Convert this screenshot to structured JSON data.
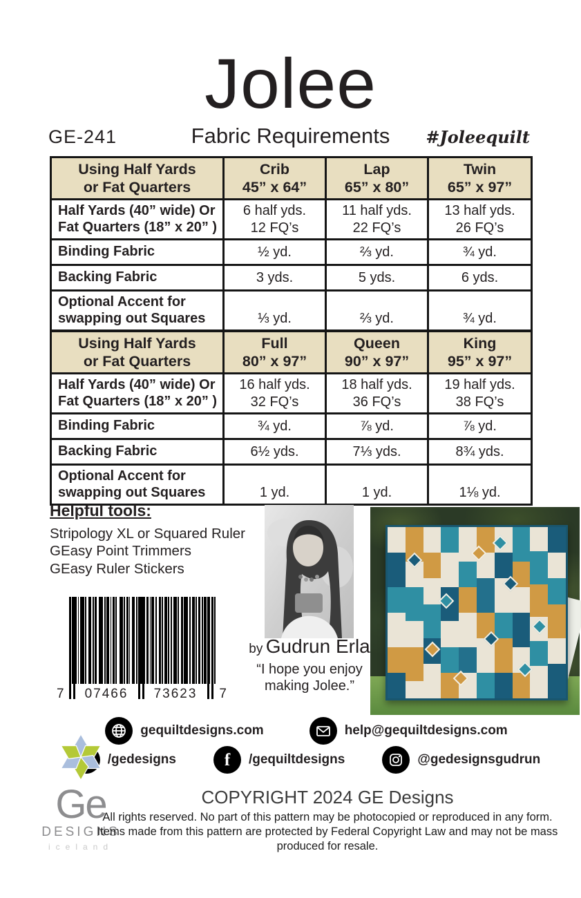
{
  "header": {
    "title": "Jolee",
    "pattern_number": "GE-241",
    "subtitle": "Fabric Requirements",
    "hashtag": "#Joleequilt"
  },
  "fabric_tables": [
    {
      "corner": [
        "Using Half Yards",
        "or Fat Quarters"
      ],
      "columns": [
        {
          "name": "Crib",
          "size": "45” x 64”"
        },
        {
          "name": "Lap",
          "size": "65”  x 80”"
        },
        {
          "name": "Twin",
          "size": "65”  x 97”"
        }
      ],
      "rows": [
        {
          "label": [
            "Half Yards (40”  wide)  Or",
            "Fat Quarters (18”  x 20” )"
          ],
          "values": [
            [
              "6 half yds.",
              "12 FQ’s"
            ],
            [
              "11 half yds.",
              "22 FQ’s"
            ],
            [
              "13 half yds.",
              "26 FQ’s"
            ]
          ]
        },
        {
          "label": [
            "Binding Fabric"
          ],
          "values": [
            [
              "½ yd."
            ],
            [
              "⅔ yd."
            ],
            [
              "¾ yd."
            ]
          ]
        },
        {
          "label": [
            "Backing Fabric"
          ],
          "values": [
            [
              "3 yds."
            ],
            [
              "5 yds."
            ],
            [
              "6 yds."
            ]
          ]
        },
        {
          "label": [
            "Optional Accent for",
            "swapping out Squares"
          ],
          "values": [
            [
              "⅓ yd."
            ],
            [
              "⅔ yd."
            ],
            [
              "¾ yd."
            ]
          ]
        }
      ]
    },
    {
      "corner": [
        "Using Half Yards",
        "or Fat Quarters"
      ],
      "columns": [
        {
          "name": "Full",
          "size": "80”  x 97”"
        },
        {
          "name": "Queen",
          "size": "90”  x 97”"
        },
        {
          "name": "King",
          "size": "95”  x 97”"
        }
      ],
      "rows": [
        {
          "label": [
            "Half Yards (40”  wide)  Or",
            "Fat Quarters (18”  x 20” )"
          ],
          "values": [
            [
              "16 half yds.",
              "32 FQ’s"
            ],
            [
              "18 half yds.",
              "36 FQ’s"
            ],
            [
              "19 half yds.",
              "38 FQ’s"
            ]
          ]
        },
        {
          "label": [
            "Binding Fabric"
          ],
          "values": [
            [
              "¾ yd."
            ],
            [
              "⅞ yd."
            ],
            [
              "⅞ yd."
            ]
          ]
        },
        {
          "label": [
            "Backing Fabric"
          ],
          "values": [
            [
              "6½ yds."
            ],
            [
              "7⅓ yds."
            ],
            [
              "8¾ yds."
            ]
          ]
        },
        {
          "label": [
            "Optional Accent for",
            "swapping out Squares"
          ],
          "values": [
            [
              "1 yd."
            ],
            [
              "1 yd."
            ],
            [
              "1⅛ yd."
            ]
          ]
        }
      ]
    }
  ],
  "helpful_tools": {
    "title": "Helpful tools:",
    "items": [
      "Stripology XL or Squared Ruler",
      "GEasy Point Trimmers",
      "GEasy Ruler Stickers"
    ]
  },
  "barcode": {
    "digits": [
      "7",
      "07466",
      "73623",
      "7"
    ],
    "pattern": [
      2,
      2,
      4,
      1,
      2,
      2,
      1,
      2,
      6,
      1,
      2,
      3,
      4,
      2,
      2,
      1,
      3,
      3,
      6,
      2,
      2,
      1,
      4,
      2,
      1,
      2,
      3,
      1,
      2,
      4,
      5,
      1,
      2,
      2,
      3,
      1,
      1,
      3,
      4,
      2,
      2,
      2,
      6,
      1,
      2,
      2,
      3,
      2,
      1,
      1,
      4,
      2,
      2,
      3,
      3,
      1,
      2,
      2,
      4,
      1,
      2,
      2,
      2,
      2,
      5,
      1,
      2,
      3,
      3,
      1,
      6,
      2,
      2,
      2,
      4,
      1,
      2,
      2,
      3,
      2,
      2,
      1,
      4,
      3,
      2,
      2,
      3,
      1,
      2
    ]
  },
  "byline": {
    "by": "by",
    "name": "Gudrun Erla",
    "quote_line1": "“I hope you enjoy",
    "quote_line2": "making Jolee.”"
  },
  "social": {
    "website": "gequiltdesigns.com",
    "email": "help@gequiltdesigns.com",
    "youtube": "/gedesigns",
    "facebook": "/gequiltdesigns",
    "instagram": "@gedesignsgudrun"
  },
  "logo": {
    "ge": "Ge",
    "designs": "DESIGNS",
    "country": "iceland",
    "star_blue": "#aabedd",
    "star_green": "#b4c937"
  },
  "copyright": {
    "line1": "COPYRIGHT 2024  GE Designs",
    "body": "All rights reserved. No part of this pattern may be photocopied or reproduced in any form. Items made from this pattern are protected by Federal Copyright Law and may not be mass produced for resale."
  },
  "colors": {
    "table_header_bg": "#e8dec0",
    "table_border": "#151515",
    "text": "#231f20",
    "logo_gray": "#8d8d8f"
  },
  "quilt": {
    "palette": {
      "t": "#2f8fa3",
      "n": "#1a5c7a",
      "g": "#d09a44",
      "c": "#eae4d6",
      "d": "#23708c"
    },
    "columns": [
      [
        [
          "c",
          3
        ],
        [
          "n",
          4
        ],
        [
          "t",
          3
        ],
        [
          "c",
          4
        ],
        [
          "g",
          3
        ],
        [
          "n",
          3
        ]
      ],
      [
        [
          "g",
          4
        ],
        [
          "c",
          3
        ],
        [
          "t",
          4
        ],
        [
          "c",
          3
        ],
        [
          "g",
          4
        ],
        [
          "c",
          2
        ]
      ],
      [
        [
          "c",
          3
        ],
        [
          "g",
          3
        ],
        [
          "c",
          3
        ],
        [
          "t",
          4
        ],
        [
          "n",
          3
        ],
        [
          "c",
          4
        ]
      ],
      [
        [
          "t",
          3
        ],
        [
          "c",
          4
        ],
        [
          "n",
          4
        ],
        [
          "c",
          3
        ],
        [
          "t",
          3
        ],
        [
          "g",
          3
        ]
      ],
      [
        [
          "c",
          4
        ],
        [
          "t",
          3
        ],
        [
          "g",
          3
        ],
        [
          "c",
          4
        ],
        [
          "d",
          3
        ],
        [
          "c",
          3
        ]
      ],
      [
        [
          "g",
          3
        ],
        [
          "c",
          3
        ],
        [
          "d",
          4
        ],
        [
          "g",
          3
        ],
        [
          "c",
          4
        ],
        [
          "t",
          3
        ]
      ],
      [
        [
          "c",
          3
        ],
        [
          "n",
          3
        ],
        [
          "c",
          4
        ],
        [
          "t",
          3
        ],
        [
          "g",
          4
        ],
        [
          "n",
          3
        ]
      ],
      [
        [
          "t",
          4
        ],
        [
          "g",
          3
        ],
        [
          "c",
          3
        ],
        [
          "n",
          4
        ],
        [
          "c",
          3
        ],
        [
          "g",
          3
        ]
      ],
      [
        [
          "c",
          3
        ],
        [
          "t",
          4
        ],
        [
          "g",
          4
        ],
        [
          "c",
          3
        ],
        [
          "t",
          3
        ],
        [
          "c",
          4
        ]
      ],
      [
        [
          "n",
          3
        ],
        [
          "c",
          3
        ],
        [
          "t",
          3
        ],
        [
          "g",
          4
        ],
        [
          "c",
          3
        ],
        [
          "n",
          4
        ]
      ]
    ],
    "diamonds": [
      [
        12,
        16,
        "n"
      ],
      [
        30,
        40,
        "t"
      ],
      [
        48,
        12,
        "g"
      ],
      [
        66,
        30,
        "n"
      ],
      [
        82,
        55,
        "t"
      ],
      [
        22,
        68,
        "g"
      ],
      [
        55,
        62,
        "n"
      ],
      [
        74,
        80,
        "t"
      ],
      [
        38,
        85,
        "g"
      ],
      [
        60,
        6,
        "t"
      ]
    ]
  }
}
